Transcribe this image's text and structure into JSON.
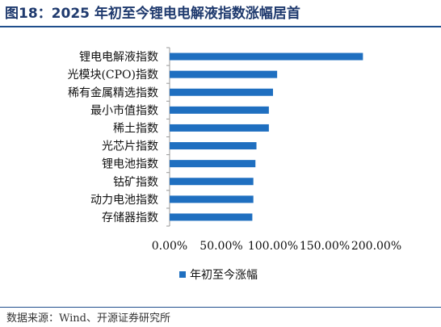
{
  "figure": {
    "title": "图18：2025 年初至今锂电电解液指数涨幅居首",
    "source": "数据来源：Wind、开源证券研究所"
  },
  "chart_data": {
    "type": "bar",
    "orientation": "horizontal",
    "categories": [
      "锂电电解液指数",
      "光模块(CPO)指数",
      "稀有金属精选指数",
      "最小市值指数",
      "稀土指数",
      "光芯片指数",
      "锂电池指数",
      "钴矿指数",
      "动力电池指数",
      "存储器指数"
    ],
    "series": [
      {
        "name": "年初至今涨幅",
        "values": [
          187,
          104,
          100,
          96,
          96,
          84,
          83,
          81,
          81,
          80
        ],
        "color": "#1f6fc0"
      }
    ],
    "xlim": [
      0,
      200
    ],
    "xticks": [
      "0.00%",
      "50.00%",
      "100.00%",
      "150.00%",
      "200.00%"
    ],
    "legend_position": "bottom",
    "grid": false
  }
}
